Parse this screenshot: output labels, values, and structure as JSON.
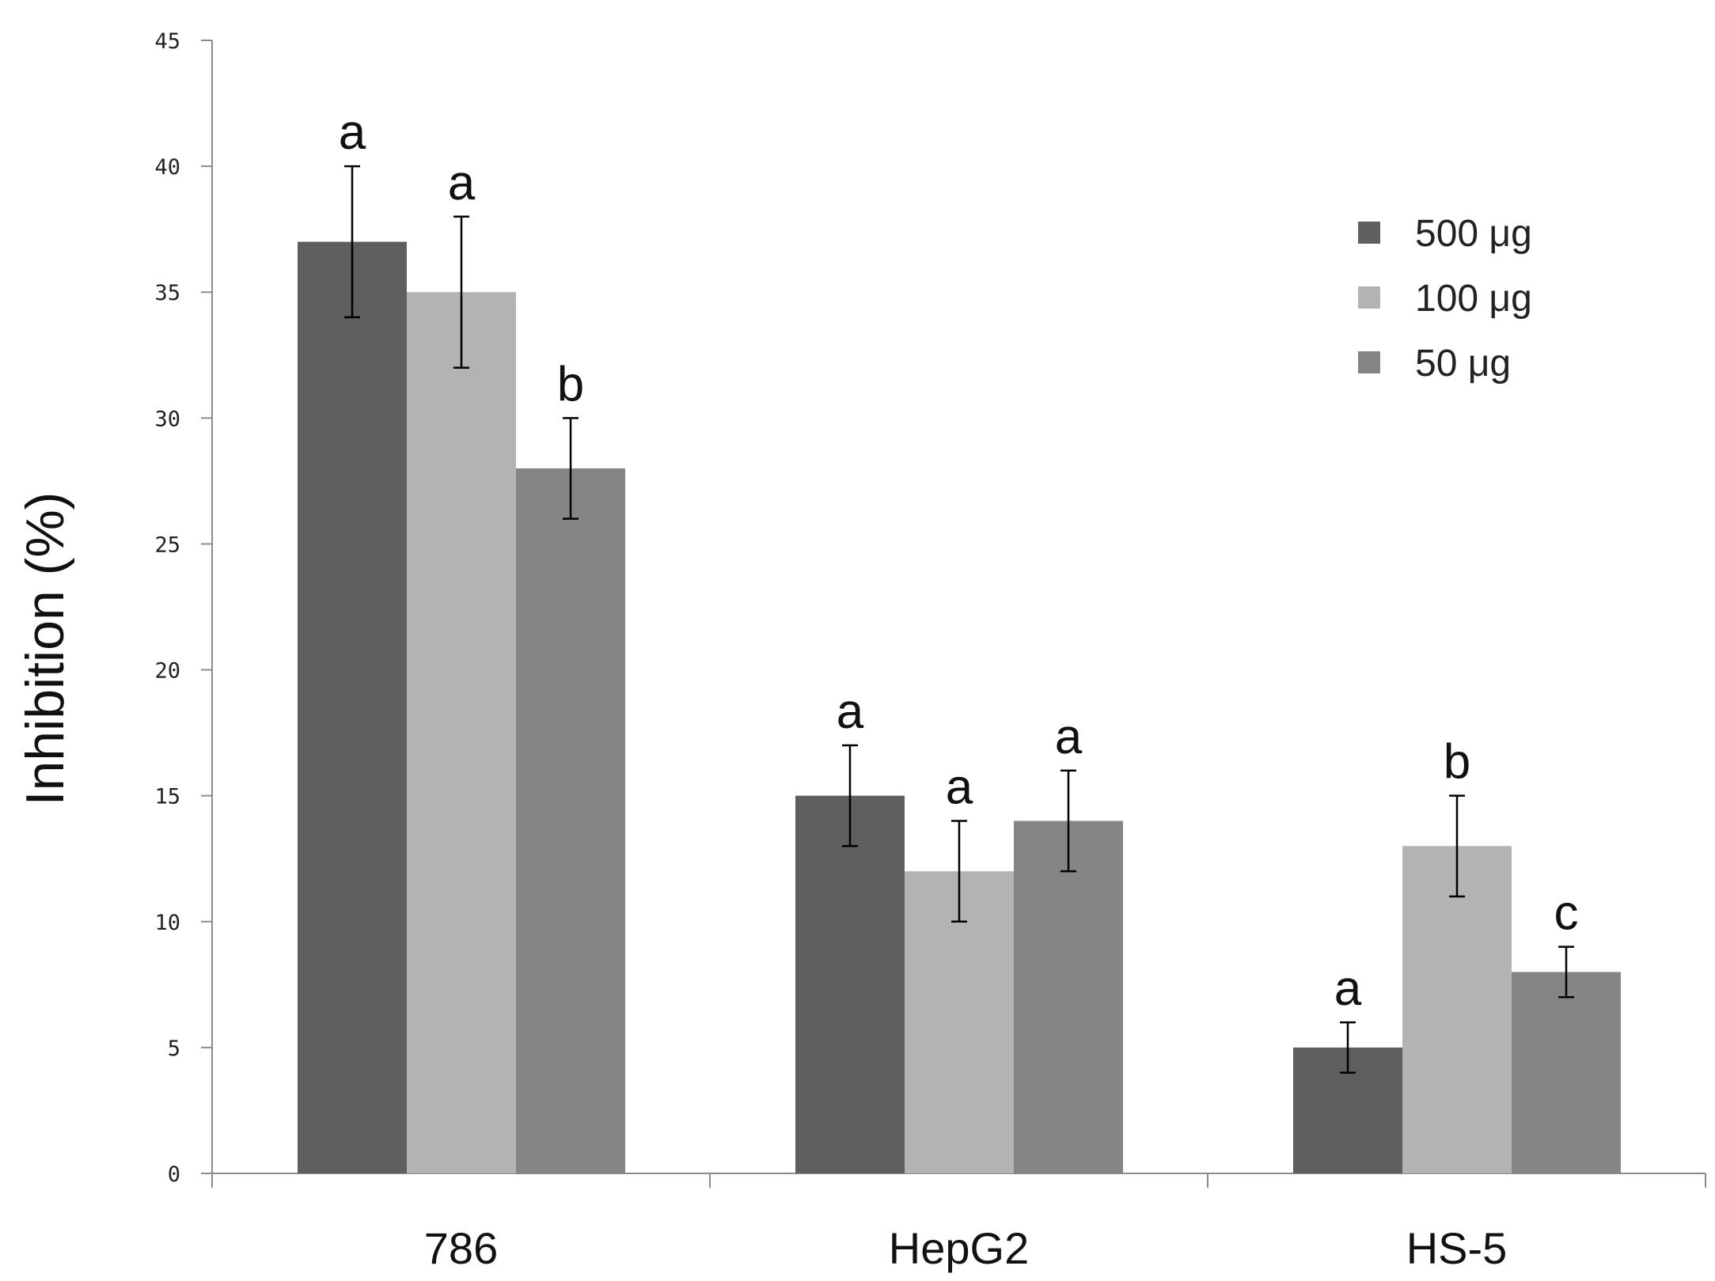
{
  "chart_data": {
    "type": "bar",
    "title": "",
    "xlabel": "",
    "ylabel": "Inhibition (%)",
    "ylim": [
      0,
      45
    ],
    "yticks": [
      0,
      5,
      10,
      15,
      20,
      25,
      30,
      35,
      40,
      45
    ],
    "grid": false,
    "legend_position": "top-right",
    "categories": [
      "786",
      "HepG2",
      "HS-5"
    ],
    "series": [
      {
        "name": "500 μg",
        "color": "#5f5f5f",
        "values": [
          37,
          15,
          5
        ],
        "errors": [
          3,
          2,
          1
        ],
        "labels": [
          "a",
          "a",
          "a"
        ]
      },
      {
        "name": "100 μg",
        "color": "#b3b3b3",
        "values": [
          35,
          12,
          13
        ],
        "errors": [
          3,
          2,
          2
        ],
        "labels": [
          "a",
          "a",
          "b"
        ]
      },
      {
        "name": "50 μg",
        "color": "#858585",
        "values": [
          28,
          14,
          8
        ],
        "errors": [
          2,
          2,
          1
        ],
        "labels": [
          "b",
          "a",
          "c"
        ]
      }
    ]
  }
}
